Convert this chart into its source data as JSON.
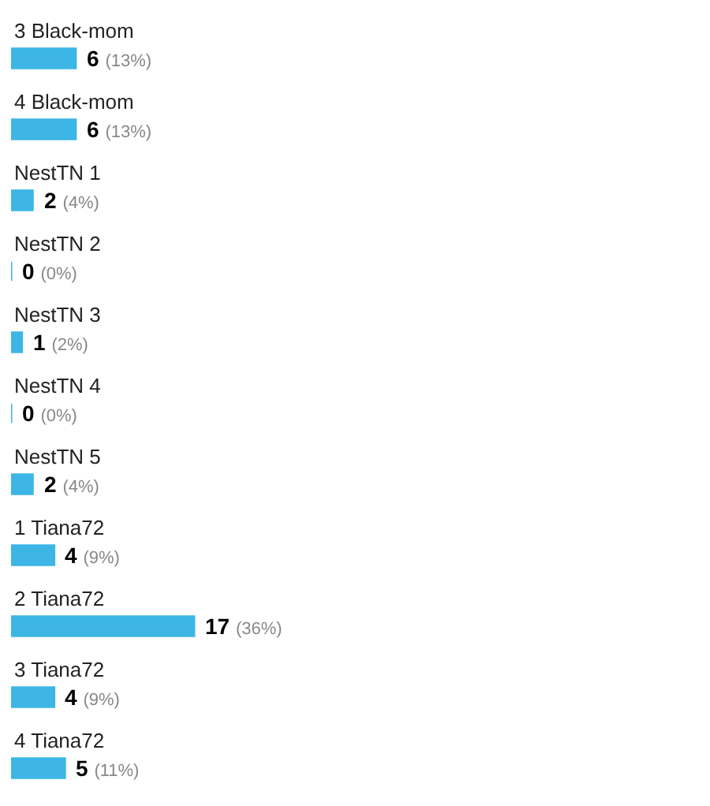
{
  "chart_data": {
    "type": "bar",
    "orientation": "horizontal",
    "color": "#3db6e6",
    "categories": [
      "3 Black-mom",
      "4 Black-mom",
      "NestTN 1",
      "NestTN 2",
      "NestTN 3",
      "NestTN 4",
      "NestTN 5",
      "1 Tiana72",
      "2 Tiana72",
      "3 Tiana72",
      "4 Tiana72"
    ],
    "values": [
      6,
      6,
      2,
      0,
      1,
      0,
      2,
      4,
      17,
      4,
      5
    ],
    "value_labels": [
      "6 (13%)",
      "6 (13%)",
      "2 (4%)",
      "0 (0%)",
      "1 (2%)",
      "0 (0%)",
      "2 (4%)",
      "4 (9%)",
      "17 (36%)",
      "4 (9%)",
      "5 (11%)"
    ]
  }
}
